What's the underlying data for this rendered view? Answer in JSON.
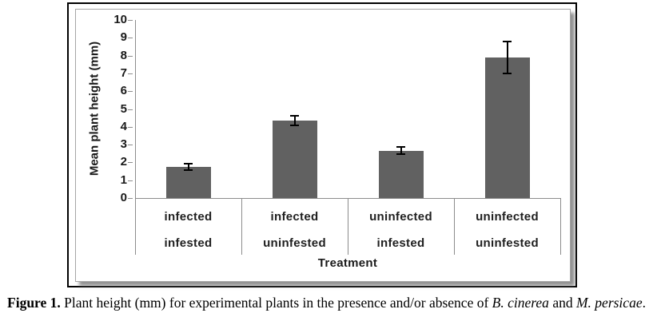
{
  "chart_data": {
    "type": "bar",
    "title": "",
    "ylabel": "Mean plant height (mm)",
    "xlabel": "Treatment",
    "ylim": [
      0,
      10
    ],
    "yticks": [
      0,
      1,
      2,
      3,
      4,
      5,
      6,
      7,
      8,
      9,
      10
    ],
    "categories_row1": [
      "infected",
      "infected",
      "uninfected",
      "uninfected"
    ],
    "categories_row2": [
      "infested",
      "uninfested",
      "infested",
      "uninfested"
    ],
    "values": [
      1.75,
      4.35,
      2.65,
      7.9
    ],
    "errors": [
      0.2,
      0.25,
      0.2,
      0.9
    ],
    "bar_color": "#616161",
    "axis_color": "#8c8c8c",
    "error_bar_color": "#000000",
    "grid": false,
    "legend": "none"
  },
  "caption": {
    "label": "Figure 1.",
    "text_before": " Plant height (mm) for experimental plants in the presence and/or absence of ",
    "species_1": "B. cinerea",
    "conjunction": " and ",
    "species_2": "M. persicae",
    "period": "."
  }
}
